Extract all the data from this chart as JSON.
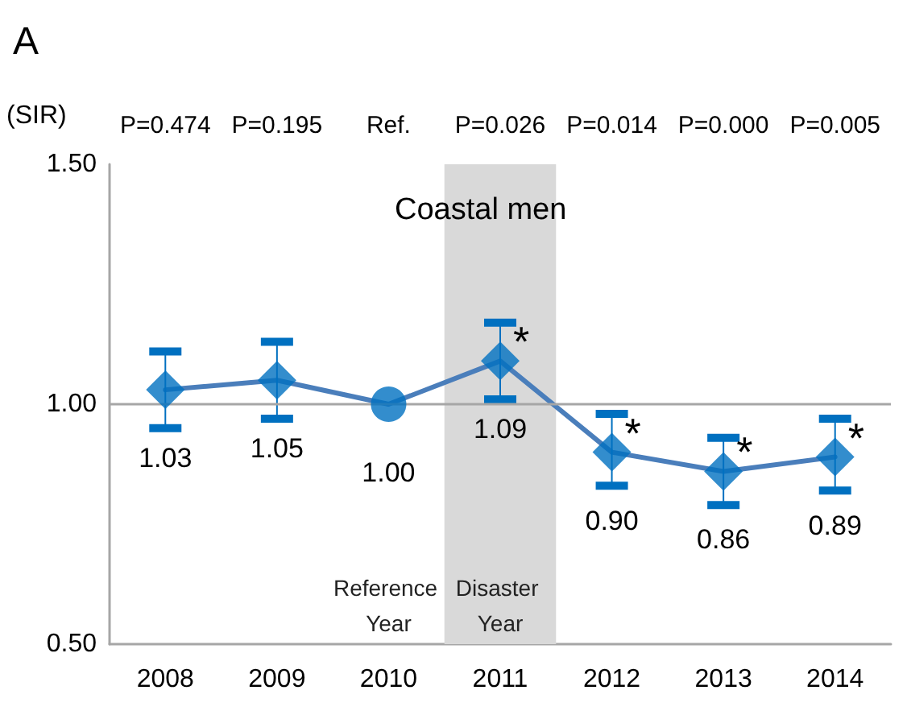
{
  "chart_data": {
    "type": "line",
    "title": "Coastal men",
    "ylabel": "(SIR)",
    "categories": [
      "2008",
      "2009",
      "2010",
      "2011",
      "2012",
      "2013",
      "2014"
    ],
    "series": [
      {
        "color": "#4a7ebb",
        "marker": "none",
        "values": [
          1.03,
          1.05,
          1.0,
          1.09,
          0.9,
          0.86,
          0.89
        ],
        "value_labels": [
          "1.03",
          "1.05",
          "1.00",
          "1.09",
          "0.90",
          "0.86",
          "0.89"
        ],
        "errors": [
          [
            0.95,
            1.11
          ],
          [
            0.97,
            1.13
          ],
          null,
          [
            1.01,
            1.17
          ],
          [
            0.83,
            0.98
          ],
          [
            0.79,
            0.93
          ],
          [
            0.82,
            0.97
          ]
        ]
      },
      {
        "type": "scatter",
        "color": "#0070c0",
        "marker": "diamond",
        "values": [
          1.03,
          1.05,
          null,
          1.09,
          0.9,
          0.86,
          0.89
        ]
      },
      {
        "type": "scatter",
        "color": "#0070c0",
        "marker": "circle",
        "values": [
          null,
          null,
          1.0,
          null,
          null,
          null,
          null
        ]
      }
    ],
    "ylim": [
      0.5,
      1.5
    ],
    "yticks": [
      {
        "value": 0.5,
        "label": "0.50"
      },
      {
        "value": 1.0,
        "label": "1.00"
      },
      {
        "value": 1.5,
        "label": "1.50"
      }
    ],
    "ref_lines": [
      {
        "axis": "y",
        "value": 1.0,
        "color": "#a6a6a6"
      }
    ],
    "bands": [
      {
        "axis": "x",
        "from": "2011",
        "to": "2011",
        "label": "Disaster Year",
        "color": "#d9d9d9"
      }
    ],
    "annotations": [
      "A",
      "P=0.474",
      "P=0.195",
      "Ref.",
      "P=0.026",
      "P=0.014",
      "P=0.000",
      "P=0.005",
      "Reference Year",
      {
        "text": "*",
        "x": "2011",
        "y": 1.09
      },
      {
        "text": "*",
        "x": "2012",
        "y": 0.9
      },
      {
        "text": "*",
        "x": "2013",
        "y": 0.86
      },
      {
        "text": "*",
        "x": "2014",
        "y": 0.89
      }
    ]
  }
}
